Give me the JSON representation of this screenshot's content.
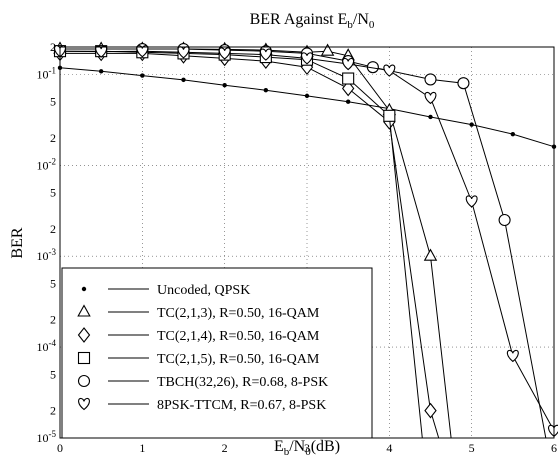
{
  "chart_data": {
    "type": "line",
    "title": "BER Against E",
    "title_sub": "b",
    "title_mid": "/N",
    "title_sub2": "0",
    "xlabel_main": "E",
    "xlabel_sub": "b",
    "xlabel_mid": "/N",
    "xlabel_sub2": "0",
    "xlabel_tail": "(dB)",
    "ylabel": "BER",
    "xlim": [
      0,
      6
    ],
    "ylim": [
      1e-05,
      0.2
    ],
    "yscale": "log",
    "grid": true,
    "legend_position": "bottom-left",
    "x_ticks": [
      "0",
      "1",
      "2",
      "3",
      "4",
      "5",
      "6"
    ],
    "y_ticks": [
      {
        "value": 0.2,
        "base": "2",
        "exp": ""
      },
      {
        "value": 0.1,
        "base": "10",
        "exp": "-1"
      },
      {
        "value": 0.05,
        "base": "5",
        "exp": ""
      },
      {
        "value": 0.02,
        "base": "2",
        "exp": ""
      },
      {
        "value": 0.01,
        "base": "10",
        "exp": "-2"
      },
      {
        "value": 0.005,
        "base": "5",
        "exp": ""
      },
      {
        "value": 0.002,
        "base": "2",
        "exp": ""
      },
      {
        "value": 0.001,
        "base": "10",
        "exp": "-3"
      },
      {
        "value": 0.0005,
        "base": "5",
        "exp": ""
      },
      {
        "value": 0.0002,
        "base": "2",
        "exp": ""
      },
      {
        "value": 0.0001,
        "base": "10",
        "exp": "-4"
      },
      {
        "value": 5e-05,
        "base": "5",
        "exp": ""
      },
      {
        "value": 2e-05,
        "base": "2",
        "exp": ""
      },
      {
        "value": 1e-05,
        "base": "10",
        "exp": "-5"
      }
    ],
    "series": [
      {
        "name": "Uncoded, QPSK",
        "marker": "dot",
        "x": [
          0,
          0.5,
          1,
          1.5,
          2,
          2.5,
          3,
          3.5,
          4,
          4.5,
          5,
          5.5,
          6
        ],
        "y": [
          0.118,
          0.108,
          0.097,
          0.087,
          0.076,
          0.067,
          0.058,
          0.05,
          0.042,
          0.034,
          0.028,
          0.022,
          0.016
        ]
      },
      {
        "name": "TC(2,1,3), R=0.50, 16-QAM",
        "marker": "triangle",
        "x": [
          0,
          0.5,
          1,
          1.5,
          2,
          2.5,
          3,
          3.25,
          3.5,
          4.0,
          4.5,
          4.75
        ],
        "y": [
          0.19,
          0.19,
          0.19,
          0.19,
          0.188,
          0.185,
          0.175,
          0.18,
          0.16,
          0.04,
          0.001,
          1e-05
        ]
      },
      {
        "name": "TC(2,1,4), R=0.50, 16-QAM",
        "marker": "diamond",
        "x": [
          0,
          0.5,
          1,
          1.5,
          2,
          2.5,
          3,
          3.5,
          4.0,
          4.5,
          4.6
        ],
        "y": [
          0.17,
          0.17,
          0.17,
          0.16,
          0.15,
          0.14,
          0.12,
          0.07,
          0.03,
          2e-05,
          1e-05
        ]
      },
      {
        "name": "TC(2,1,5), R=0.50, 16-QAM",
        "marker": "square",
        "x": [
          0,
          0.5,
          1,
          1.5,
          2,
          2.5,
          3,
          3.5,
          4.0,
          4.4
        ],
        "y": [
          0.18,
          0.18,
          0.175,
          0.17,
          0.165,
          0.155,
          0.145,
          0.09,
          0.035,
          1e-05
        ]
      },
      {
        "name": "TBCH(32,26), R=0.68, 8-PSK",
        "marker": "circle",
        "x": [
          1,
          1.5,
          2,
          2.5,
          3,
          3.5,
          3.8,
          4.5,
          4.9,
          5.4,
          5.9
        ],
        "y": [
          0.19,
          0.19,
          0.185,
          0.18,
          0.17,
          0.14,
          0.12,
          0.088,
          0.08,
          0.0025,
          1e-05
        ]
      },
      {
        "name": "8PSK-TTCM, R=0.67, 8-PSK",
        "marker": "heart",
        "x": [
          0,
          0.5,
          1,
          1.5,
          2,
          2.5,
          3,
          3.5,
          4.0,
          4.5,
          5.0,
          5.5,
          6.0
        ],
        "y": [
          0.18,
          0.178,
          0.18,
          0.175,
          0.17,
          0.165,
          0.15,
          0.13,
          0.11,
          0.055,
          0.004,
          8e-05,
          1.2e-05
        ]
      }
    ]
  }
}
